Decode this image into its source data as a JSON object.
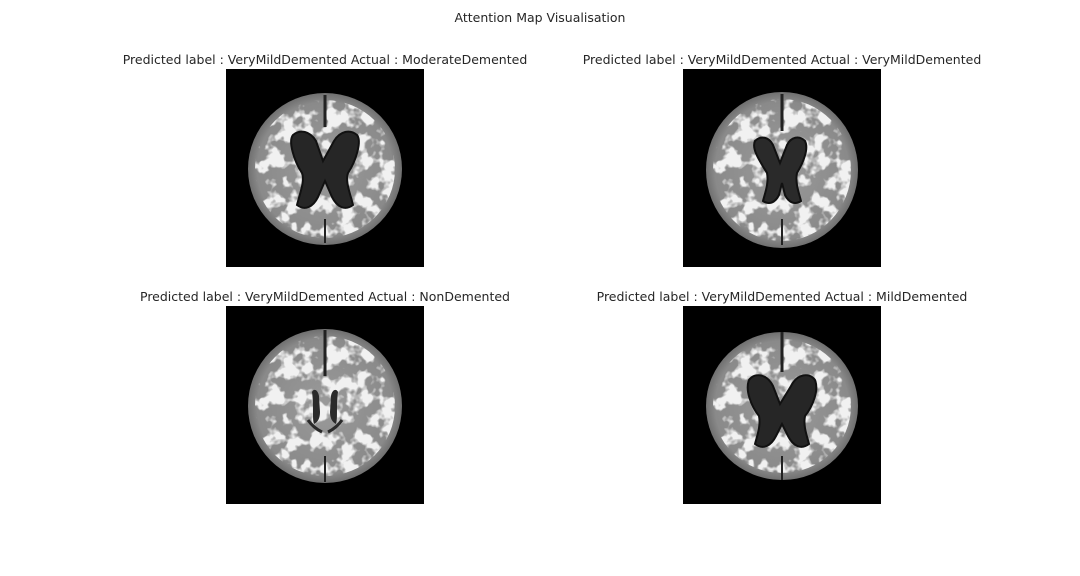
{
  "figure": {
    "title": "Attention Map Visualisation"
  },
  "panels": [
    {
      "title": "Predicted label : VeryMildDemented Actual : ModerateDemented"
    },
    {
      "title": "Predicted label : VeryMildDemented Actual : VeryMildDemented"
    },
    {
      "title": "Predicted label : VeryMildDemented Actual : NonDemented"
    },
    {
      "title": "Predicted label : VeryMildDemented Actual : MildDemented"
    }
  ]
}
